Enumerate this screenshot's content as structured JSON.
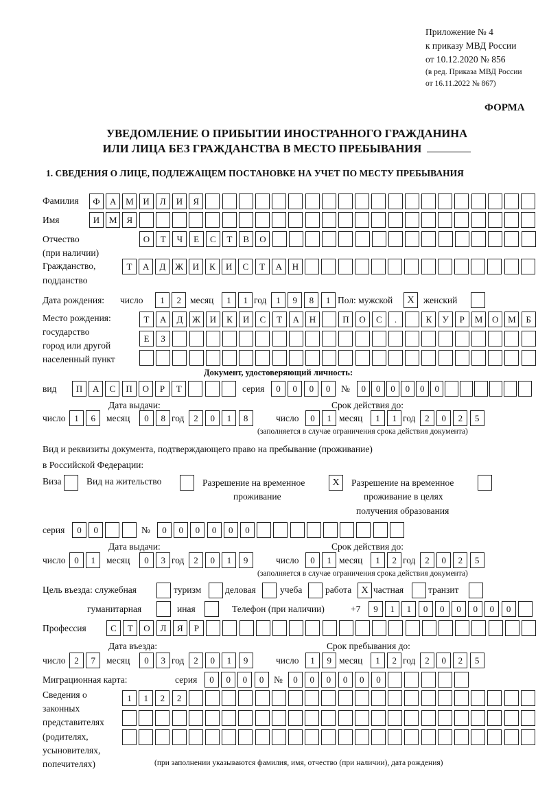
{
  "header": {
    "appendix": "Приложение № 4",
    "order": "к приказу МВД России",
    "order_date": "от 10.12.2020 № 856",
    "edition1": "(в ред. Приказа МВД России",
    "edition2": "от 16.11.2022 № 867)",
    "form": "ФОРМА",
    "title1": "УВЕДОМЛЕНИЕ О ПРИБЫТИИ ИНОСТРАННОГО ГРАЖДАНИНА",
    "title2": "ИЛИ ЛИЦА БЕЗ ГРАЖДАНСТВА В МЕСТО ПРЕБЫВАНИЯ",
    "section1": "1. СВЕДЕНИЯ О ЛИЦЕ, ПОДЛЕЖАЩЕМ ПОСТАНОВКЕ НА УЧЕТ ПО МЕСТУ ПРЕБЫВАНИЯ"
  },
  "labels": {
    "surname": "Фамилия",
    "name": "Имя",
    "patronymic": "Отчество",
    "patronymic_note": "(при наличии)",
    "citizenship": "Гражданство,",
    "citizenship2": "подданство",
    "birth_date": "Дата рождения:",
    "day": "число",
    "month": "месяц",
    "year": "год",
    "sex": "Пол: мужской",
    "female": "женский",
    "birthplace1": "Место рождения:",
    "birthplace2": "государство",
    "birthplace3": "город или другой",
    "birthplace4": "населенный пункт",
    "id_doc": "Документ, удостоверяющий личность:",
    "kind": "вид",
    "series": "серия",
    "number": "№",
    "issue_date": "Дата выдачи:",
    "valid_until": "Срок действия до:",
    "validity_note": "(заполняется в случае ограничения срока действия документа)",
    "stay_doc1": "Вид и реквизиты документа, подтверждающего право на пребывание (проживание)",
    "stay_doc2": "в Российской Федерации:",
    "visa": "Виза",
    "residence": "Вид на жительство",
    "temp_permit1": "Разрешение на временное",
    "temp_permit2": "проживание",
    "edu_permit1": "Разрешение на временное",
    "edu_permit2": "проживание в целях",
    "edu_permit3": "получения образования",
    "purpose": "Цель въезда: служебная",
    "tourism": "туризм",
    "business": "деловая",
    "study": "учеба",
    "work": "работа",
    "private": "частная",
    "transit": "транзит",
    "humanitarian": "гуманитарная",
    "other": "иная",
    "phone": "Телефон (при наличии)",
    "phone_prefix": "+7",
    "profession": "Профессия",
    "entry_date": "Дата въезда:",
    "stay_until": "Срок пребывания до:",
    "migration_card": "Миграционная карта:",
    "reps1": "Сведения о",
    "reps2": "законных",
    "reps3": "представителях",
    "reps4": "(родителях,",
    "reps5": "усыновителях,",
    "reps6": "попечителях)",
    "reps_note": "(при заполнении указываются фамилия, имя, отчество (при наличии), дата рождения)"
  },
  "fields": {
    "surname": {
      "value": "ФАМИЛИЯ",
      "cells": 27
    },
    "name": {
      "value": "ИМЯ",
      "cells": 27
    },
    "patronymic": {
      "value": "ОТЧЕСТВО",
      "cells": 24
    },
    "citizenship": {
      "value": "ТАДЖИКИСТАН",
      "cells": 25
    },
    "birth_day": {
      "value": "12",
      "cells": 2
    },
    "birth_month": {
      "value": "11",
      "cells": 2
    },
    "birth_year": {
      "value": "1981",
      "cells": 4
    },
    "sex_male": "X",
    "sex_female": "",
    "birthplace_1": {
      "value": "ТАДЖИКИСТАН ПОС. КУРМОМБ",
      "cells": 24
    },
    "birthplace_2": {
      "value": "ЕЗ",
      "cells": 24
    },
    "birthplace_3": {
      "value": "",
      "cells": 24
    },
    "id_kind": {
      "value": "ПАСПОРТ",
      "cells": 10
    },
    "id_series": {
      "value": "0000",
      "cells": 4
    },
    "id_number": {
      "value": "000000",
      "cells": 12
    },
    "id_issue_day": {
      "value": "16",
      "cells": 2
    },
    "id_issue_month": {
      "value": "08",
      "cells": 2
    },
    "id_issue_year": {
      "value": "2018",
      "cells": 4
    },
    "id_valid_day": {
      "value": "01",
      "cells": 2
    },
    "id_valid_month": {
      "value": "11",
      "cells": 2
    },
    "id_valid_year": {
      "value": "2025",
      "cells": 4
    },
    "visa": "",
    "residence": "",
    "temp_permit": "X",
    "edu_permit": "",
    "stay_series": {
      "value": "00",
      "cells": 4
    },
    "stay_number": {
      "value": "000000",
      "cells": 15
    },
    "stay_issue_day": {
      "value": "01",
      "cells": 2
    },
    "stay_issue_month": {
      "value": "03",
      "cells": 2
    },
    "stay_issue_year": {
      "value": "2019",
      "cells": 4
    },
    "stay_valid_day": {
      "value": "01",
      "cells": 2
    },
    "stay_valid_month": {
      "value": "12",
      "cells": 2
    },
    "stay_valid_year": {
      "value": "2025",
      "cells": 4
    },
    "purpose_official": "",
    "purpose_tourism": "",
    "purpose_business": "",
    "purpose_study": "",
    "purpose_work": "X",
    "purpose_private": "",
    "purpose_transit": "",
    "purpose_humanitarian": "",
    "purpose_other": "",
    "phone": {
      "value": "911000000",
      "cells": 10
    },
    "profession": {
      "value": "СТОЛЯР",
      "cells": 26
    },
    "entry_day": {
      "value": "27",
      "cells": 2
    },
    "entry_month": {
      "value": "03",
      "cells": 2
    },
    "entry_year": {
      "value": "2019",
      "cells": 4
    },
    "stay_until_day": {
      "value": "19",
      "cells": 2
    },
    "stay_until_month": {
      "value": "12",
      "cells": 2
    },
    "stay_until_year": {
      "value": "2025",
      "cells": 4
    },
    "mig_series": {
      "value": "0000",
      "cells": 4
    },
    "mig_number": {
      "value": "000000",
      "cells": 11
    },
    "reps_1": {
      "value": "1122",
      "cells": 25
    },
    "reps_2": {
      "value": "",
      "cells": 25
    },
    "reps_3": {
      "value": "",
      "cells": 25
    }
  }
}
